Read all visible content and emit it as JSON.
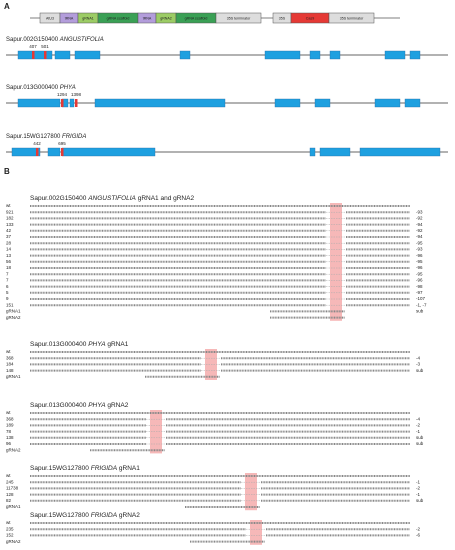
{
  "panel_a": {
    "label": "A",
    "construct": [
      "AtU3",
      "tRNA",
      "gRNA1",
      "gRNA scaffold",
      "tRNA",
      "gRNA2",
      "gRNA scaffold",
      "35S terminator",
      "35S",
      "Cas9",
      "35S terminator"
    ],
    "genes": [
      {
        "id": "Sapur.002G150400",
        "name": "ANGUSTIFOLIA",
        "sites": [
          407,
          501
        ]
      },
      {
        "id": "Sapur.013G000400",
        "name": "PHYA",
        "sites": [
          1294,
          1398
        ]
      },
      {
        "id": "Sapur.15WG127800",
        "name": "FRIGIDA",
        "sites": [
          442,
          695
        ]
      }
    ]
  },
  "panel_b": {
    "label": "B",
    "sections": [
      {
        "id": "Sapur.002G150400",
        "gene": "ANGUSTIFOLIA",
        "suffix": "gRNA1 and gRNA2",
        "rows": [
          {
            "line": "wt"
          },
          {
            "line": "921",
            "change": "-93"
          },
          {
            "line": "182",
            "change": "-92"
          },
          {
            "line": "133",
            "change": "-94"
          },
          {
            "line": "42",
            "change": "-92"
          },
          {
            "line": "37",
            "change": "-94"
          },
          {
            "line": "28",
            "change": "-95"
          },
          {
            "line": "14",
            "change": "-93"
          },
          {
            "line": "13",
            "change": "-96"
          },
          {
            "line": "56",
            "change": "-95"
          },
          {
            "line": "18",
            "change": "-96"
          },
          {
            "line": "7",
            "change": "-95"
          },
          {
            "line": "7",
            "change": "-96"
          },
          {
            "line": "6",
            "change": "-98"
          },
          {
            "line": "5",
            "change": "-97"
          },
          {
            "line": "9",
            "change": "-107"
          },
          {
            "line": "151",
            "change": "-1, -7"
          },
          {
            "line": "gRNA1",
            "change": "sub"
          },
          {
            "line": "gRNA2"
          }
        ]
      },
      {
        "id": "Sapur.013G000400",
        "gene": "PHYA",
        "suffix": "gRNA1",
        "rows": [
          {
            "line": "wt"
          },
          {
            "line": "368",
            "change": "-4"
          },
          {
            "line": "184",
            "change": "-3"
          },
          {
            "line": "148",
            "change": "sub"
          },
          {
            "line": "gRNA1"
          }
        ]
      },
      {
        "id": "Sapur.013G000400",
        "gene": "PHYA",
        "suffix": "gRNA2",
        "rows": [
          {
            "line": "wt"
          },
          {
            "line": "368",
            "change": "-4"
          },
          {
            "line": "189",
            "change": "-2"
          },
          {
            "line": "78",
            "change": "-1"
          },
          {
            "line": "138",
            "change": "sub"
          },
          {
            "line": "96",
            "change": "sub"
          },
          {
            "line": "gRNA2"
          }
        ]
      },
      {
        "id": "Sapur.15WG127800",
        "gene": "FRIGIDA",
        "suffix": "gRNA1",
        "rows": [
          {
            "line": "wt"
          },
          {
            "line": "245",
            "change": "-1"
          },
          {
            "line": "11738",
            "change": "-2"
          },
          {
            "line": "128",
            "change": "-1"
          },
          {
            "line": "82",
            "change": "sub"
          },
          {
            "line": "gRNA1"
          }
        ]
      },
      {
        "id": "Sapur.15WG127800",
        "gene": "FRIGIDA",
        "suffix": "gRNA2",
        "rows": [
          {
            "line": "wt"
          },
          {
            "line": "235",
            "change": "-2"
          },
          {
            "line": "152",
            "change": "-6"
          },
          {
            "line": "gRNA2"
          }
        ]
      }
    ]
  }
}
